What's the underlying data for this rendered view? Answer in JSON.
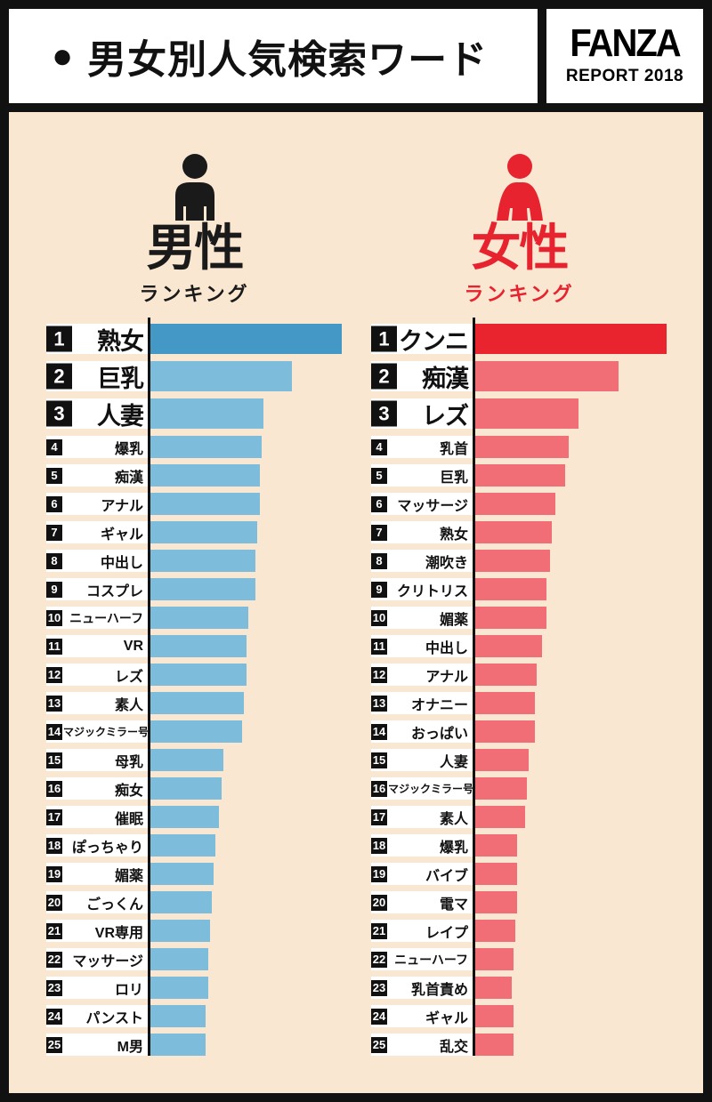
{
  "header": {
    "bullet": "●",
    "title": "男女別人気検索ワード",
    "logo": {
      "brand": "FANZA",
      "sub": "REPORT 2018"
    }
  },
  "columns": [
    {
      "gender": "男性",
      "subtitle": "ランキング",
      "accent": "#1a1a1a",
      "icon": "male-person-icon"
    },
    {
      "gender": "女性",
      "subtitle": "ランキング",
      "accent": "#E6232E",
      "icon": "female-person-icon"
    }
  ],
  "colors": {
    "page_border": "#111111",
    "header_bg": "#ffffff",
    "content_bg": "#FAE7D1",
    "brand_red": "#E6232E",
    "rank_box": "#111111",
    "label_band": "#ffffff"
  },
  "chart_data": {
    "type": "bar",
    "orientation": "horizontal",
    "title": "男女別人気検索ワード",
    "value_unit": "relative length, % of each column's top bar (no numeric axis shown)",
    "series": [
      {
        "name": "男性ランキング",
        "bar_color": "#7EBCDB",
        "bar_color_rank1": "#4498C5",
        "categories": [
          "熟女",
          "巨乳",
          "人妻",
          "爆乳",
          "痴漢",
          "アナル",
          "ギャル",
          "中出し",
          "コスプレ",
          "ニューハーフ",
          "VR",
          "レズ",
          "素人",
          "マジックミラー号",
          "母乳",
          "痴女",
          "催眠",
          "ぽっちゃり",
          "媚薬",
          "ごっくん",
          "VR専用",
          "マッサージ",
          "ロリ",
          "パンスト",
          "M男"
        ],
        "values": [
          100,
          74,
          59,
          58,
          57,
          57,
          56,
          55,
          55,
          51,
          50,
          50,
          49,
          48,
          38,
          37,
          36,
          34,
          33,
          32,
          31,
          30,
          30,
          29,
          29
        ]
      },
      {
        "name": "女性ランキング",
        "bar_color": "#F26E76",
        "bar_color_rank1": "#E9242F",
        "categories": [
          "クンニ",
          "痴漢",
          "レズ",
          "乳首",
          "巨乳",
          "マッサージ",
          "熟女",
          "潮吹き",
          "クリトリス",
          "媚薬",
          "中出し",
          "アナル",
          "オナニー",
          "おっぱい",
          "人妻",
          "マジックミラー号",
          "素人",
          "爆乳",
          "バイブ",
          "電マ",
          "レイプ",
          "ニューハーフ",
          "乳首責め",
          "ギャル",
          "乱交"
        ],
        "values": [
          100,
          75,
          54,
          49,
          47,
          42,
          40,
          39,
          37,
          37,
          35,
          32,
          31,
          31,
          28,
          27,
          26,
          22,
          22,
          22,
          21,
          20,
          19,
          20,
          20
        ]
      }
    ]
  }
}
